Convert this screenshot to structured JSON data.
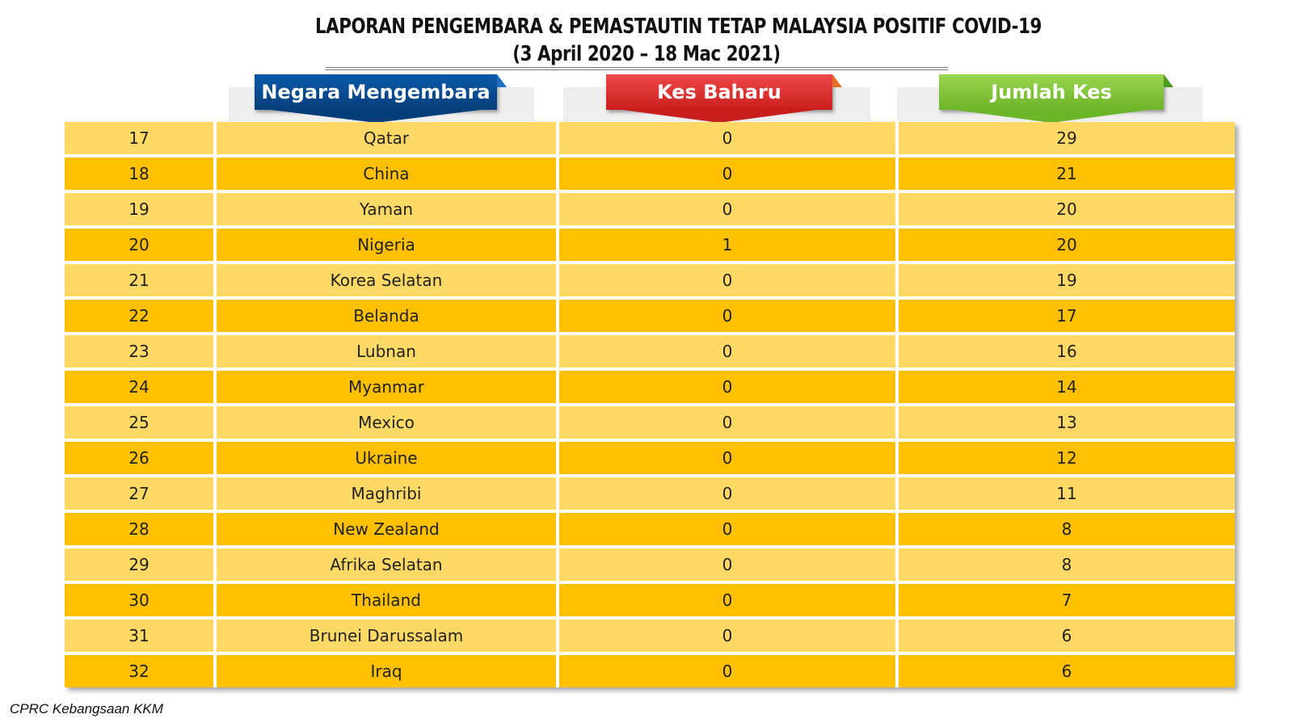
{
  "title": {
    "line1": "LAPORAN PENGEMBARA & PEMASTAUTIN TETAP MALAYSIA POSITIF COVID-19",
    "line2": "(3 April 2020 – 18 Mac 2021)"
  },
  "headers": {
    "country": "Negara Mengembara",
    "new_cases": "Kes Baharu",
    "total_cases": "Jumlah Kes"
  },
  "colors": {
    "row_light": "#ffd966",
    "row_dark": "#ffc000",
    "header_blue": "#063e7a",
    "header_red": "#c91e1e",
    "header_green": "#6cb428"
  },
  "rows": [
    {
      "no": "17",
      "country": "Qatar",
      "new": "0",
      "total": "29"
    },
    {
      "no": "18",
      "country": "China",
      "new": "0",
      "total": "21"
    },
    {
      "no": "19",
      "country": "Yaman",
      "new": "0",
      "total": "20"
    },
    {
      "no": "20",
      "country": "Nigeria",
      "new": "1",
      "total": "20"
    },
    {
      "no": "21",
      "country": "Korea Selatan",
      "new": "0",
      "total": "19"
    },
    {
      "no": "22",
      "country": "Belanda",
      "new": "0",
      "total": "17"
    },
    {
      "no": "23",
      "country": "Lubnan",
      "new": "0",
      "total": "16"
    },
    {
      "no": "24",
      "country": "Myanmar",
      "new": "0",
      "total": "14"
    },
    {
      "no": "25",
      "country": "Mexico",
      "new": "0",
      "total": "13"
    },
    {
      "no": "26",
      "country": "Ukraine",
      "new": "0",
      "total": "12"
    },
    {
      "no": "27",
      "country": "Maghribi",
      "new": "0",
      "total": "11"
    },
    {
      "no": "28",
      "country": "New Zealand",
      "new": "0",
      "total": "8"
    },
    {
      "no": "29",
      "country": "Afrika Selatan",
      "new": "0",
      "total": "8"
    },
    {
      "no": "30",
      "country": "Thailand",
      "new": "0",
      "total": "7"
    },
    {
      "no": "31",
      "country": "Brunei Darussalam",
      "new": "0",
      "total": "6"
    },
    {
      "no": "32",
      "country": "Iraq",
      "new": "0",
      "total": "6"
    }
  ],
  "footer": "CPRC Kebangsaan KKM"
}
